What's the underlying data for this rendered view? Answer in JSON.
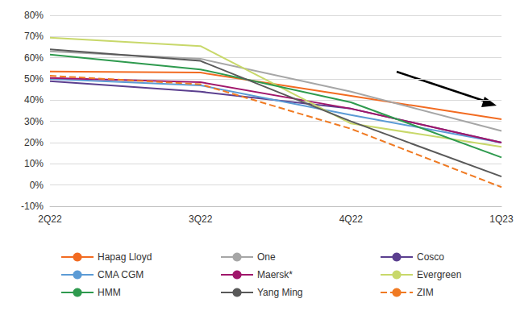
{
  "chart_data": {
    "type": "line",
    "categories": [
      "2Q22",
      "3Q22",
      "4Q22",
      "1Q23"
    ],
    "ylim": [
      -10,
      80
    ],
    "yticks": [
      {
        "value": -10,
        "label": "-10%"
      },
      {
        "value": 0,
        "label": "0%"
      },
      {
        "value": 10,
        "label": "10%"
      },
      {
        "value": 20,
        "label": "20%"
      },
      {
        "value": 30,
        "label": "30%"
      },
      {
        "value": 40,
        "label": "40%"
      },
      {
        "value": 50,
        "label": "50%"
      },
      {
        "value": 60,
        "label": "60%"
      },
      {
        "value": 70,
        "label": "70%"
      },
      {
        "value": 80,
        "label": "80%"
      }
    ],
    "grid": true,
    "legend": "bottom",
    "series": [
      {
        "name": "Hapag Lloyd",
        "color": "#f26b21",
        "values": [
          53.5,
          53,
          42,
          31
        ]
      },
      {
        "name": "One",
        "color": "#a6a6a6",
        "values": [
          63,
          59.5,
          44,
          25.5
        ]
      },
      {
        "name": "Cosco",
        "color": "#5b3f8f",
        "values": [
          49,
          44,
          36,
          20
        ]
      },
      {
        "name": "CMA CGM",
        "color": "#5b9bd5",
        "values": [
          50,
          47,
          33,
          20
        ]
      },
      {
        "name": "Maersk*",
        "color": "#a0166b",
        "values": [
          50.5,
          48.5,
          36,
          20
        ]
      },
      {
        "name": "Evergreen",
        "color": "#c8d86a",
        "values": [
          69.5,
          65.5,
          29,
          18
        ]
      },
      {
        "name": "HMM",
        "color": "#2e9a4e",
        "values": [
          61.5,
          54.5,
          39,
          13
        ]
      },
      {
        "name": "Yang Ming",
        "color": "#595959",
        "values": [
          64,
          58.5,
          30,
          4
        ]
      },
      {
        "name": "ZIM",
        "color": "#f07a22",
        "line_style": "dashed",
        "values": [
          51.5,
          47.5,
          26.5,
          -1
        ]
      }
    ]
  }
}
